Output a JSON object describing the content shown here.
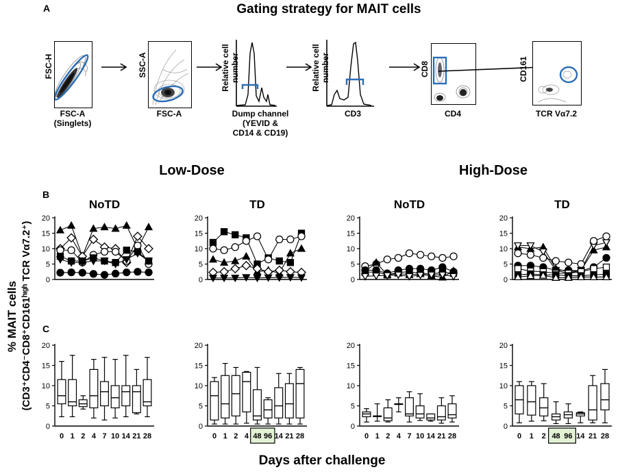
{
  "panel_a": {
    "letter": "A",
    "title": "Gating strategy for MAIT cells",
    "steps": [
      {
        "ylabel": "FSC-H",
        "xlabel_lines": [
          "FSC-A",
          "(Singlets)"
        ]
      },
      {
        "ylabel": "SSC-A",
        "xlabel_lines": [
          "FSC-A"
        ]
      },
      {
        "ylabel_lines": [
          "Relative cell",
          "number"
        ],
        "xlabel_lines": [
          "Dump channel",
          "(YEVID &",
          "CD14 & CD19)"
        ]
      },
      {
        "ylabel_lines": [
          "Relative cell",
          "number"
        ],
        "xlabel_lines": [
          "CD3"
        ]
      },
      {
        "ylabel": "CD8",
        "xlabel_lines": [
          "CD4"
        ]
      },
      {
        "ylabel": "CD161",
        "xlabel_lines": [
          "TCR Vα7.2"
        ]
      }
    ],
    "gate_color": "#2a6db5"
  },
  "panel_b_letter": "B",
  "panel_c_letter": "C",
  "group_titles": {
    "low": "Low-Dose",
    "high": "High-Dose"
  },
  "y_axis_label_line1": "% MAIT cells",
  "y_axis_label_line2": "(CD3⁺CD4⁻CD8⁺CD161ʰᶦᵍʰ TCR Vα7.2⁺)",
  "x_axis_label": "Days after challenge",
  "highlight_color": "#e3f2d5",
  "chart_data": [
    {
      "type": "line",
      "panel": "B",
      "title": "NoTD",
      "group": "Low-Dose",
      "ylim": [
        0,
        20
      ],
      "yticks": [
        0,
        5,
        10,
        15,
        20
      ],
      "x": [
        "0",
        "1",
        "2",
        "4",
        "7",
        "10",
        "14",
        "21",
        "28"
      ],
      "series": [
        {
          "marker": "triangle-filled",
          "values": [
            16,
            17.5,
            7.5,
            16.5,
            17,
            16.5,
            17.5,
            10,
            17
          ]
        },
        {
          "marker": "diamond-open",
          "values": [
            10,
            13.5,
            7.5,
            13,
            10.5,
            10,
            5.5,
            14,
            10
          ]
        },
        {
          "marker": "circle-open",
          "values": [
            9.5,
            9.5,
            5.5,
            8,
            9,
            9,
            6,
            11,
            5
          ]
        },
        {
          "marker": "square-filled",
          "values": [
            7.5,
            6,
            6,
            7,
            6,
            5.5,
            9.5,
            9,
            6
          ]
        },
        {
          "marker": "triangle-down-filled",
          "values": [
            6.5,
            5.5,
            5.5,
            6,
            6,
            5,
            6.5,
            8.5,
            6
          ]
        },
        {
          "marker": "circle-filled",
          "values": [
            2.2,
            2.3,
            2.2,
            1.8,
            1.5,
            1.9,
            2.3,
            2.5,
            2.3
          ]
        }
      ]
    },
    {
      "type": "line",
      "panel": "B",
      "title": "TD",
      "group": "Low-Dose",
      "ylim": [
        0,
        20
      ],
      "yticks": [
        0,
        5,
        10,
        15,
        20
      ],
      "x": [
        "0",
        "1",
        "2",
        "4",
        "7",
        "10",
        "14",
        "21",
        "28"
      ],
      "series": [
        {
          "marker": "square-filled",
          "values": [
            12,
            15.5,
            14.5,
            13.5,
            5,
            7,
            6,
            5.5,
            15
          ]
        },
        {
          "marker": "circle-open",
          "values": [
            10,
            9.5,
            10.5,
            12.5,
            14,
            6.5,
            13,
            13,
            14
          ]
        },
        {
          "marker": "triangle-filled",
          "values": [
            6.5,
            5.5,
            6,
            7.5,
            2.5,
            3,
            2,
            8.5,
            10
          ]
        },
        {
          "marker": "diamond-open",
          "values": [
            2.3,
            2.5,
            3.5,
            4.5,
            3.5,
            2.5,
            3,
            2.5,
            2.3
          ]
        },
        {
          "marker": "triangle-down-filled",
          "values": [
            0.5,
            0.5,
            0.5,
            0.7,
            0.5,
            0.6,
            0.6,
            0.7,
            0.6
          ]
        }
      ]
    },
    {
      "type": "line",
      "panel": "B",
      "title": "NoTD",
      "group": "High-Dose",
      "ylim": [
        0,
        20
      ],
      "yticks": [
        0,
        5,
        10,
        15,
        20
      ],
      "x": [
        "0",
        "1",
        "2",
        "4",
        "7",
        "10",
        "14",
        "21",
        "28"
      ],
      "series": [
        {
          "marker": "circle-open",
          "values": [
            4.3,
            5,
            6.5,
            7,
            8.5,
            8,
            7.5,
            7,
            7.5
          ]
        },
        {
          "marker": "circle-filled",
          "values": [
            3,
            3,
            2,
            3,
            3.5,
            3.5,
            3,
            4,
            2.5
          ]
        },
        {
          "marker": "square-filled",
          "values": [
            2.3,
            2.5,
            1.5,
            2.3,
            2.5,
            2,
            1.8,
            2.3,
            2
          ]
        },
        {
          "marker": "triangle-filled",
          "values": [
            2.5,
            5.5,
            1.5,
            2,
            1.5,
            1.8,
            1.2,
            0.7,
            2.8
          ]
        },
        {
          "marker": "triangle-down-open",
          "values": [
            1,
            1.2,
            1.3,
            1.5,
            1,
            1.4,
            1.5,
            1.5,
            1
          ]
        }
      ]
    },
    {
      "type": "line",
      "panel": "B",
      "title": "TD",
      "group": "High-Dose",
      "ylim": [
        0,
        20
      ],
      "yticks": [
        0,
        5,
        10,
        15,
        20
      ],
      "x": [
        "0",
        "1",
        "2",
        "48h",
        "96h",
        "14",
        "21",
        "28"
      ],
      "series": [
        {
          "marker": "triangle-filled",
          "values": [
            10.5,
            10,
            10.5,
            3.5,
            2.5,
            3,
            9.5,
            10.5
          ]
        },
        {
          "marker": "triangle-down-open",
          "values": [
            11,
            11,
            9,
            3,
            2,
            3,
            11,
            12
          ]
        },
        {
          "marker": "circle-open",
          "values": [
            8.5,
            8,
            7,
            6,
            5.5,
            5,
            12.5,
            14
          ]
        },
        {
          "marker": "circle-filled",
          "values": [
            4.5,
            4.5,
            4,
            3,
            3,
            2.8,
            4,
            7
          ]
        },
        {
          "marker": "square-open",
          "values": [
            3.5,
            2.7,
            2.5,
            2,
            2,
            2.5,
            3.5,
            4
          ]
        },
        {
          "marker": "square-filled",
          "values": [
            1.5,
            1.8,
            1.5,
            1.5,
            1.2,
            1.2,
            1.5,
            1.7
          ]
        },
        {
          "marker": "triangle-open",
          "values": [
            0.8,
            1.2,
            1.3,
            0.6,
            0.6,
            0.8,
            0.8,
            0.8
          ]
        }
      ]
    },
    {
      "type": "box",
      "panel": "C",
      "group": "Low-Dose",
      "subset": "NoTD",
      "ylim": [
        0,
        20
      ],
      "yticks": [
        0,
        5,
        10,
        15,
        20
      ],
      "x": [
        "0",
        "1",
        "2",
        "4",
        "7",
        "10",
        "14",
        "21",
        "28"
      ],
      "boxes": [
        {
          "min": 2.3,
          "q1": 5.5,
          "median": 7.5,
          "q3": 11.5,
          "max": 16
        },
        {
          "min": 2.3,
          "q1": 5,
          "median": 6,
          "q3": 11.5,
          "max": 17.5
        },
        {
          "min": 4.2,
          "q1": 4.8,
          "median": 5.5,
          "q3": 6.5,
          "max": 7.5
        },
        {
          "min": 2,
          "q1": 4.5,
          "median": 7.5,
          "q3": 14,
          "max": 16.5
        },
        {
          "min": 1.5,
          "q1": 5,
          "median": 8.5,
          "q3": 11,
          "max": 17
        },
        {
          "min": 2,
          "q1": 4.5,
          "median": 7,
          "q3": 10,
          "max": 16.5
        },
        {
          "min": 2.3,
          "q1": 5,
          "median": 8.5,
          "q3": 10,
          "max": 17.5
        },
        {
          "min": 3,
          "q1": 3.3,
          "median": 8.5,
          "q3": 10,
          "max": 14
        },
        {
          "min": 2.3,
          "q1": 5,
          "median": 6,
          "q3": 11.5,
          "max": 17
        }
      ]
    },
    {
      "type": "box",
      "panel": "C",
      "group": "Low-Dose",
      "subset": "TD",
      "ylim": [
        0,
        20
      ],
      "yticks": [
        0,
        5,
        10,
        15,
        20
      ],
      "x": [
        "0",
        "1",
        "2",
        "4",
        "48",
        "96",
        "14",
        "21",
        "28"
      ],
      "boxes": [
        {
          "min": 0.5,
          "q1": 1.5,
          "median": 7.5,
          "q3": 11,
          "max": 12
        },
        {
          "min": 0.5,
          "q1": 2,
          "median": 5.5,
          "q3": 12.5,
          "max": 15.5
        },
        {
          "min": 0.5,
          "q1": 2.5,
          "median": 8,
          "q3": 12.5,
          "max": 14.5
        },
        {
          "min": 0.7,
          "q1": 3.5,
          "median": 11,
          "q3": 13.3,
          "max": 13.5
        },
        {
          "min": 0.5,
          "q1": 1.5,
          "median": 2.5,
          "q3": 9,
          "max": 14.5
        },
        {
          "min": 0.5,
          "q1": 2,
          "median": 4,
          "q3": 6.5,
          "max": 7
        },
        {
          "min": 0.5,
          "q1": 2,
          "median": 5,
          "q3": 9.5,
          "max": 13
        },
        {
          "min": 0.5,
          "q1": 2,
          "median": 5.5,
          "q3": 10.5,
          "max": 13
        },
        {
          "min": 0.5,
          "q1": 2,
          "median": 10.5,
          "q3": 14,
          "max": 14.5
        }
      ]
    },
    {
      "type": "box",
      "panel": "C",
      "group": "High-Dose",
      "subset": "NoTD",
      "ylim": [
        0,
        20
      ],
      "yticks": [
        0,
        5,
        10,
        15,
        20
      ],
      "x": [
        "0",
        "1",
        "2",
        "4",
        "7",
        "10",
        "14",
        "21",
        "28"
      ],
      "boxes": [
        {
          "min": 1,
          "q1": 2.3,
          "median": 3,
          "q3": 3.5,
          "max": 4.3
        },
        {
          "min": 1.2,
          "q1": 2.5,
          "median": 2.5,
          "q3": 2.5,
          "max": 5.5
        },
        {
          "min": 1,
          "q1": 1.3,
          "median": 2,
          "q3": 4.5,
          "max": 6.5
        },
        {
          "min": 3.5,
          "q1": 5.5,
          "median": 5.5,
          "q3": 5.5,
          "max": 7
        },
        {
          "min": 1,
          "q1": 2.5,
          "median": 3,
          "q3": 7,
          "max": 8.5
        },
        {
          "min": 1.4,
          "q1": 2,
          "median": 3,
          "q3": 5,
          "max": 8
        },
        {
          "min": 1.2,
          "q1": 1.5,
          "median": 2,
          "q3": 3,
          "max": 3
        },
        {
          "min": 0.7,
          "q1": 1.5,
          "median": 2.3,
          "q3": 5,
          "max": 7
        },
        {
          "min": 1,
          "q1": 2,
          "median": 2.8,
          "q3": 5.5,
          "max": 7.5
        }
      ]
    },
    {
      "type": "box",
      "panel": "C",
      "group": "High-Dose",
      "subset": "TD",
      "ylim": [
        0,
        20
      ],
      "yticks": [
        0,
        5,
        10,
        15,
        20
      ],
      "x": [
        "0",
        "1",
        "2",
        "48",
        "96",
        "14",
        "21",
        "28"
      ],
      "boxes": [
        {
          "min": 0.8,
          "q1": 3,
          "median": 6.5,
          "q3": 10,
          "max": 11
        },
        {
          "min": 1.2,
          "q1": 2.7,
          "median": 6,
          "q3": 10,
          "max": 11
        },
        {
          "min": 1.3,
          "q1": 2.5,
          "median": 4.5,
          "q3": 7,
          "max": 10.5
        },
        {
          "min": 0.6,
          "q1": 1.5,
          "median": 2.3,
          "q3": 3,
          "max": 6
        },
        {
          "min": 0.6,
          "q1": 2,
          "median": 2.8,
          "q3": 3.5,
          "max": 5.5
        },
        {
          "min": 0.8,
          "q1": 2.5,
          "median": 3,
          "q3": 3.3,
          "max": 3.5
        },
        {
          "min": 0.8,
          "q1": 1.5,
          "median": 4,
          "q3": 10,
          "max": 12.5
        },
        {
          "min": 0.8,
          "q1": 4,
          "median": 6.5,
          "q3": 10.5,
          "max": 14
        }
      ]
    }
  ]
}
